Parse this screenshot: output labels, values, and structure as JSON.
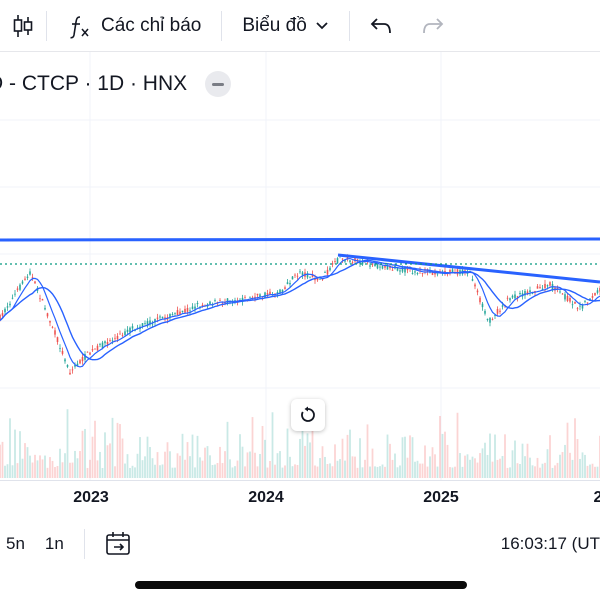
{
  "toolbar": {
    "indicators_label": "Các chỉ báo",
    "chart_type_label": "Biểu đồ"
  },
  "symbol": {
    "text": "D - CTCP · 1D · HNX"
  },
  "time_axis": {
    "ticks": [
      "2023",
      "2024",
      "2025",
      "2"
    ]
  },
  "bottom": {
    "ranges": [
      "5n",
      "1n"
    ],
    "clock": "16:03:17 (UT"
  },
  "colors": {
    "trendline": "#2962ff",
    "ma_line": "#2962ff",
    "up": "#26a69a",
    "down": "#ef5350",
    "price_line": "#089981"
  }
}
